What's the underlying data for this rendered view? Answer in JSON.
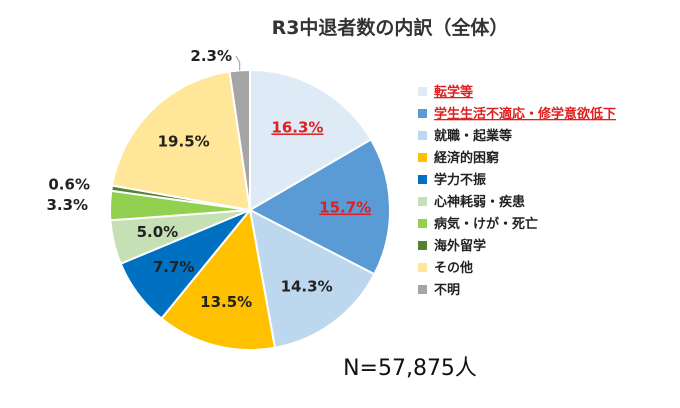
{
  "chart_data": {
    "type": "pie",
    "title": "R3中退者数の内訳（全体）",
    "note": "N=57,875人",
    "legend_position": "right",
    "slices": [
      {
        "label": "転学等",
        "value": 16.3,
        "value_label": "16.3%",
        "color": "#deebf7",
        "highlight": true
      },
      {
        "label": "学生生活不適応・修学意欲低下",
        "value": 15.7,
        "value_label": "15.7%",
        "color": "#5b9bd5",
        "highlight": true
      },
      {
        "label": "就職・起業等",
        "value": 14.3,
        "value_label": "14.3%",
        "color": "#bdd7ee",
        "highlight": false
      },
      {
        "label": "経済的困窮",
        "value": 13.5,
        "value_label": "13.5%",
        "color": "#ffc000",
        "highlight": false
      },
      {
        "label": "学力不振",
        "value": 7.7,
        "value_label": "7.7%",
        "color": "#0070c0",
        "highlight": false
      },
      {
        "label": "心神耗弱・疾患",
        "value": 5.0,
        "value_label": "5.0%",
        "color": "#c5e0b4",
        "highlight": false
      },
      {
        "label": "病気・けが・死亡",
        "value": 3.3,
        "value_label": "3.3%",
        "color": "#92d050",
        "highlight": false
      },
      {
        "label": "海外留学",
        "value": 0.6,
        "value_label": "0.6%",
        "color": "#548235",
        "highlight": false
      },
      {
        "label": "その他",
        "value": 19.5,
        "value_label": "19.5%",
        "color": "#ffe699",
        "highlight": false
      },
      {
        "label": "不明",
        "value": 2.3,
        "value_label": "2.3%",
        "color": "#a5a5a5",
        "highlight": false
      }
    ]
  }
}
